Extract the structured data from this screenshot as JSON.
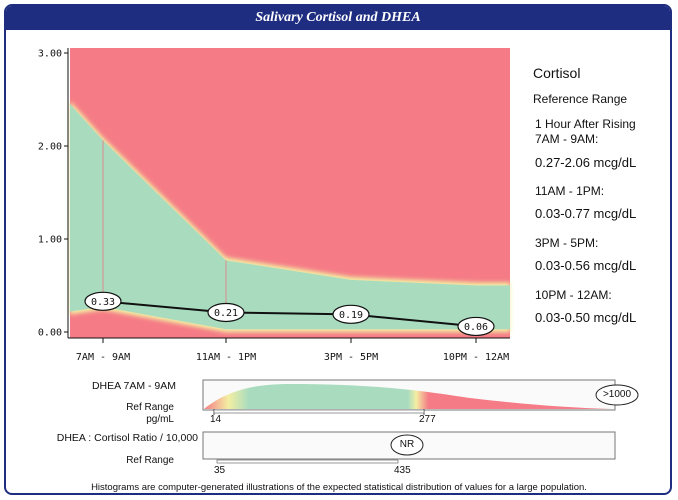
{
  "header": {
    "title": "Salivary Cortisol and DHEA"
  },
  "chart_data": {
    "type": "line",
    "title": "Salivary Cortisol and DHEA",
    "categories": [
      "7AM - 9AM",
      "11AM - 1PM",
      "3PM - 5PM",
      "10PM - 12AM"
    ],
    "series": [
      {
        "values": [
          0.33,
          0.21,
          0.19,
          0.06
        ]
      }
    ],
    "point_labels": [
      "0.33",
      "0.21",
      "0.19",
      "0.06"
    ],
    "yticks": [
      "3.00",
      "2.00",
      "1.00",
      "0.00"
    ],
    "ylim": [
      0,
      3.2
    ],
    "reference_low": [
      0.27,
      0.03,
      0.03,
      0.03
    ],
    "reference_high": [
      2.06,
      0.77,
      0.56,
      0.5
    ],
    "colors": {
      "out_of_range": "#f57c86",
      "in_range": "#a9dcbf",
      "edge": "#f3eea2",
      "line": "#111111"
    }
  },
  "sidebar": {
    "heading": "Cortisol",
    "reference_range": "Reference Range",
    "ranges": [
      {
        "time": "1 Hour After Rising",
        "time2": "7AM - 9AM:",
        "value": "0.27-2.06 mcg/dL"
      },
      {
        "time": "11AM - 1PM:",
        "value": "0.03-0.77 mcg/dL"
      },
      {
        "time": "3PM - 5PM:",
        "value": "0.03-0.56 mcg/dL"
      },
      {
        "time": "10PM - 12AM:",
        "value": "0.03-0.50 mcg/dL"
      }
    ]
  },
  "dhea": {
    "label": "DHEA 7AM - 9AM",
    "ref_label": "Ref Range",
    "unit": "pg/mL",
    "ref_low": "14",
    "ref_high": "277",
    "result": ">1000"
  },
  "ratio": {
    "label": "DHEA : Cortisol Ratio / 10,000",
    "ref_label": "Ref Range",
    "ref_low": "35",
    "ref_high": "435",
    "result": "NR"
  },
  "footer": {
    "note": "Histograms are computer-generated illustrations of the expected statistical distribution of values for a large population."
  }
}
